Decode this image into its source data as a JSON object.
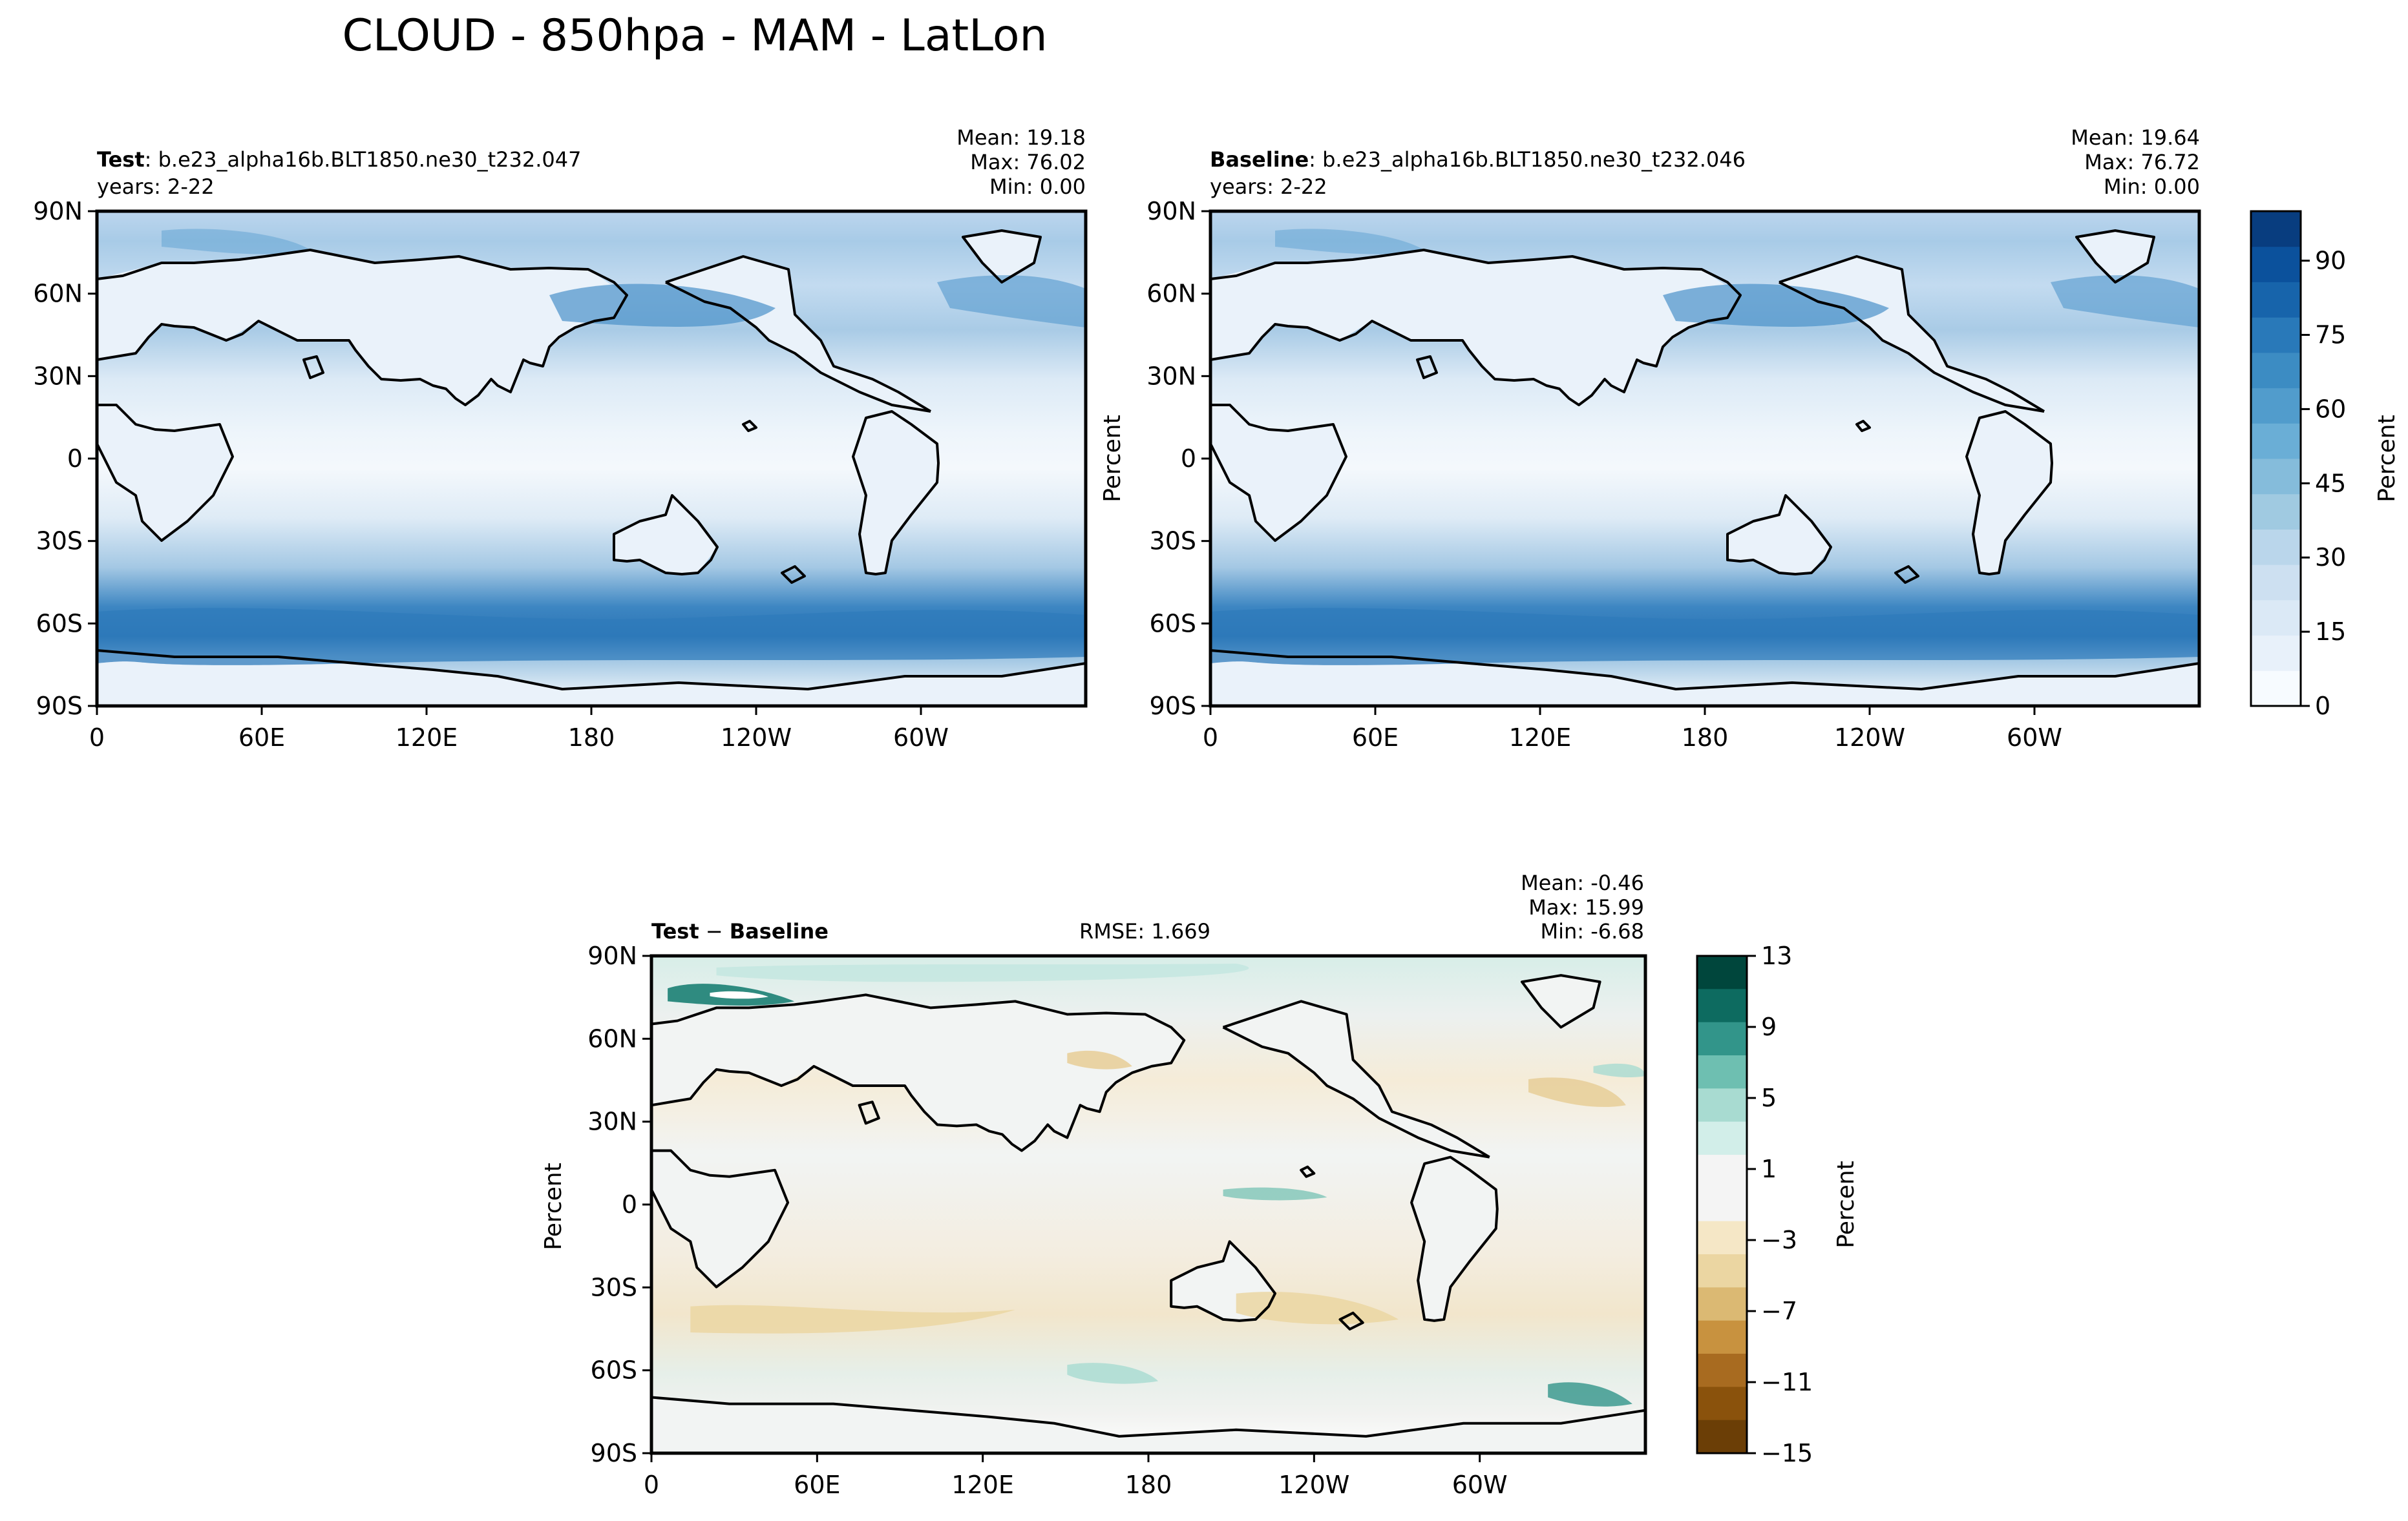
{
  "title": "CLOUD - 850hpa - MAM - LatLon",
  "lon_ticks": [
    "0",
    "60E",
    "120E",
    "180",
    "120W",
    "60W"
  ],
  "lat_ticks": [
    "90N",
    "60N",
    "30N",
    "0",
    "30S",
    "60S",
    "90S"
  ],
  "panels": {
    "test": {
      "label_bold": "Test",
      "label_rest": ": b.e23_alpha16b.BLT1850.ne30_t232.047",
      "years": "years: 2-22",
      "mean": "Mean: 19.18",
      "max": "Max: 76.02",
      "min": "Min:  0.00"
    },
    "baseline": {
      "label_bold": "Baseline",
      "label_rest": ": b.e23_alpha16b.BLT1850.ne30_t232.046",
      "years": "years: 2-22",
      "ylabel": "Percent",
      "mean": "Mean: 19.64",
      "max": "Max: 76.72",
      "min": "Min:  0.00"
    },
    "diff": {
      "label_a": "Test",
      "label_sep": " − ",
      "label_b": "Baseline",
      "rmse": "RMSE: 1.669",
      "ylabel": "Percent",
      "mean": "Mean: -0.46",
      "max": "Max: 15.99",
      "min": "Min: -6.68"
    }
  },
  "colorbar_main": {
    "label": "Percent",
    "ticks": [
      "0",
      "15",
      "30",
      "45",
      "60",
      "75",
      "90"
    ],
    "range": [
      0,
      100
    ],
    "colors": [
      "#f7fbff",
      "#e8f1fa",
      "#dbe9f6",
      "#cde0f1",
      "#bad6eb",
      "#a0cae1",
      "#85bcdb",
      "#6aaed6",
      "#519ccc",
      "#3c8cc3",
      "#2979b9",
      "#1764ab",
      "#0b519c",
      "#083d7f"
    ]
  },
  "colorbar_diff": {
    "label": "Percent",
    "ticks": [
      "13",
      "9",
      "5",
      "1",
      "−3",
      "−7",
      "−11",
      "−15"
    ],
    "colors": [
      "#00463c",
      "#0d6b60",
      "#32958a",
      "#6ebfb1",
      "#a8dbd1",
      "#d2eee9",
      "#f4f4f4",
      "#f4f4f4",
      "#f5e7c6",
      "#ebd6a2",
      "#dbb973",
      "#c8923f",
      "#a86b20",
      "#8a520c",
      "#6b3e06"
    ]
  },
  "colors": {
    "coast": "#000000",
    "ocean_main": "#c9dff1",
    "ocean_diff": "#eef3f3"
  }
}
